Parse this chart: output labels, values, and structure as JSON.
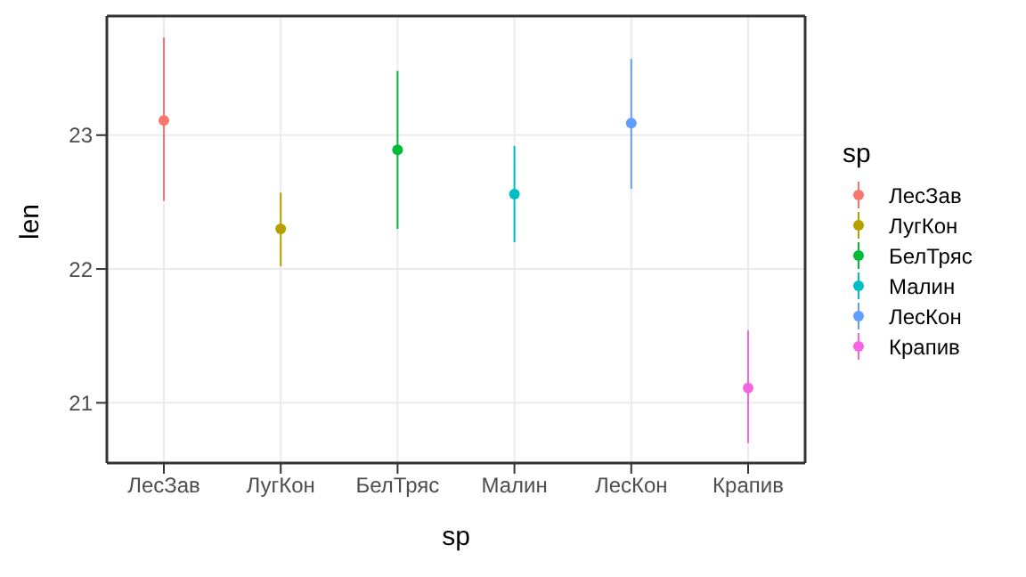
{
  "chart_data": {
    "type": "scatter",
    "xlabel": "sp",
    "ylabel": "len",
    "legend_title": "sp",
    "categories": [
      "ЛесЗав",
      "ЛугКон",
      "БелТряс",
      "Малин",
      "ЛесКон",
      "Крапив"
    ],
    "series": [
      {
        "name": "ЛесЗав",
        "color": "#f8766d",
        "values": [
          23.11,
          null,
          null,
          null,
          null,
          null
        ],
        "errors": [
          [
            22.51,
            23.73
          ],
          null,
          null,
          null,
          null,
          null
        ]
      },
      {
        "name": "ЛугКон",
        "color": "#b79f00",
        "values": [
          null,
          22.3,
          null,
          null,
          null,
          null
        ],
        "errors": [
          null,
          [
            22.02,
            22.57
          ],
          null,
          null,
          null,
          null
        ]
      },
      {
        "name": "БелТряс",
        "color": "#00ba38",
        "values": [
          null,
          null,
          22.89,
          null,
          null,
          null
        ],
        "errors": [
          null,
          null,
          [
            22.3,
            23.48
          ],
          null,
          null,
          null
        ]
      },
      {
        "name": "Малин",
        "color": "#00bfc4",
        "values": [
          null,
          null,
          null,
          22.56,
          null,
          null
        ],
        "errors": [
          null,
          null,
          null,
          [
            22.2,
            22.92
          ],
          null,
          null
        ]
      },
      {
        "name": "ЛесКон",
        "color": "#619cff",
        "values": [
          null,
          null,
          null,
          null,
          23.09,
          null
        ],
        "errors": [
          null,
          null,
          null,
          null,
          [
            22.6,
            23.57
          ],
          null
        ]
      },
      {
        "name": "Крапив",
        "color": "#f564e3",
        "values": [
          null,
          null,
          null,
          null,
          null,
          21.11
        ],
        "errors": [
          null,
          null,
          null,
          null,
          null,
          [
            20.7,
            21.54
          ]
        ]
      }
    ],
    "ylim": [
      20.55,
      23.89
    ],
    "yticks": [
      21,
      22,
      23
    ],
    "grid": true,
    "legend": "right",
    "marker": "circle"
  }
}
